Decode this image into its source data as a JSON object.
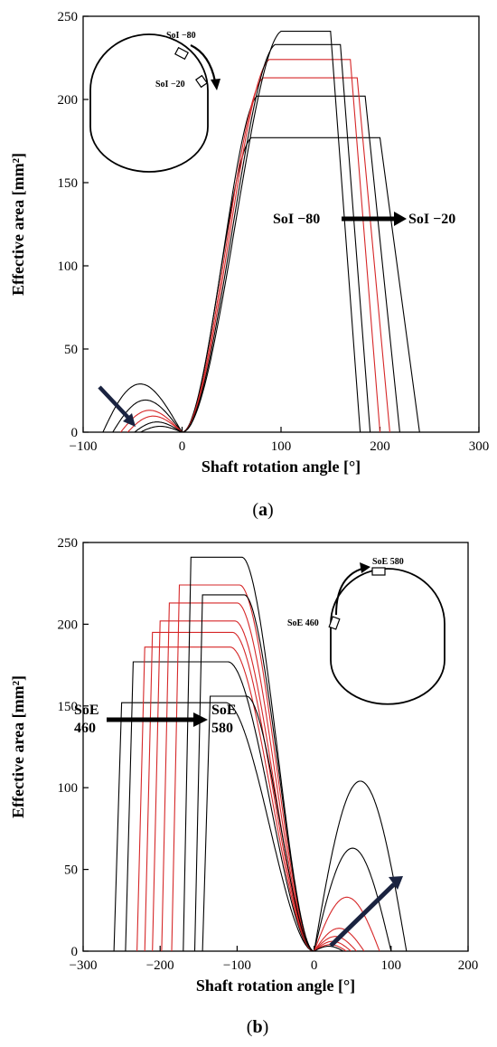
{
  "chart_data": [
    {
      "panel_label": "a",
      "type": "line",
      "xlabel": "Shaft rotation angle [°]",
      "ylabel": "Effective area [mm²]",
      "xlim": [
        -100,
        300
      ],
      "ylim": [
        0,
        250
      ],
      "xticks": [
        -100,
        0,
        100,
        200,
        300
      ],
      "yticks": [
        0,
        50,
        100,
        150,
        200,
        250
      ],
      "grid": false,
      "annotation_main": {
        "from": "SoI −80",
        "to": "SoI −20"
      },
      "inset_labels": [
        "SoI −80",
        "SoI −20"
      ],
      "series": [
        {
          "color": "#000000",
          "peak": 177,
          "close_start": 200,
          "close_end": 240,
          "exhaust_start": -80,
          "exhaust_peak": 33
        },
        {
          "color": "#000000",
          "peak": 202,
          "close_start": 185,
          "close_end": 220,
          "exhaust_start": -70,
          "exhaust_peak": 22
        },
        {
          "color": "#d62728",
          "peak": 213,
          "close_start": 177,
          "close_end": 210,
          "exhaust_start": -62,
          "exhaust_peak": 15
        },
        {
          "color": "#d62728",
          "peak": 224,
          "close_start": 170,
          "close_end": 200,
          "exhaust_start": -55,
          "exhaust_peak": 11
        },
        {
          "color": "#000000",
          "peak": 233,
          "close_start": 160,
          "close_end": 190,
          "exhaust_start": -48,
          "exhaust_peak": 7
        },
        {
          "color": "#000000",
          "peak": 241,
          "close_start": 150,
          "close_end": 180,
          "exhaust_start": -42,
          "exhaust_peak": 4
        }
      ]
    },
    {
      "panel_label": "b",
      "type": "line",
      "xlabel": "Shaft rotation angle [°]",
      "ylabel": "Effective area [mm²]",
      "xlim": [
        -300,
        200
      ],
      "ylim": [
        0,
        250
      ],
      "xticks": [
        -300,
        -200,
        -100,
        0,
        100,
        200
      ],
      "yticks": [
        0,
        50,
        100,
        150,
        200,
        250
      ],
      "grid": false,
      "annotation_main": {
        "from": "SoE\n460",
        "to": "SoE\n580"
      },
      "inset_labels": [
        "SoE 580",
        "SoE 460"
      ],
      "series": [
        {
          "color": "#000000",
          "intake_start": -260,
          "peak": 152,
          "plateau_end": -85,
          "intake_close": 120,
          "intake_peak": 104
        },
        {
          "color": "#000000",
          "intake_start": -245,
          "peak": 177,
          "plateau_end": -85,
          "intake_close": 100,
          "intake_peak": 63
        },
        {
          "color": "#d62728",
          "intake_start": -230,
          "peak": 186,
          "plateau_end": -85,
          "intake_close": 85,
          "intake_peak": 33
        },
        {
          "color": "#d62728",
          "intake_start": -220,
          "peak": 195,
          "plateau_end": -85,
          "intake_close": 65,
          "intake_peak": 14
        },
        {
          "color": "#d62728",
          "intake_start": -210,
          "peak": 202,
          "plateau_end": -85,
          "intake_close": 55,
          "intake_peak": 9
        },
        {
          "color": "#d62728",
          "intake_start": -198,
          "peak": 213,
          "plateau_end": -85,
          "intake_close": 48,
          "intake_peak": 6
        },
        {
          "color": "#d62728",
          "intake_start": -185,
          "peak": 224,
          "plateau_end": -85,
          "intake_close": 42,
          "intake_peak": 4
        },
        {
          "color": "#000000",
          "intake_start": -170,
          "peak": 241,
          "plateau_end": -85,
          "intake_close": 38,
          "intake_peak": 3
        },
        {
          "color": "#000000",
          "intake_start": -155,
          "peak": 218,
          "plateau_end": -85,
          "intake_close": 0,
          "intake_peak": 0
        },
        {
          "color": "#000000",
          "intake_start": -145,
          "peak": 156,
          "plateau_end": -85,
          "intake_close": 0,
          "intake_peak": 0
        }
      ]
    }
  ]
}
